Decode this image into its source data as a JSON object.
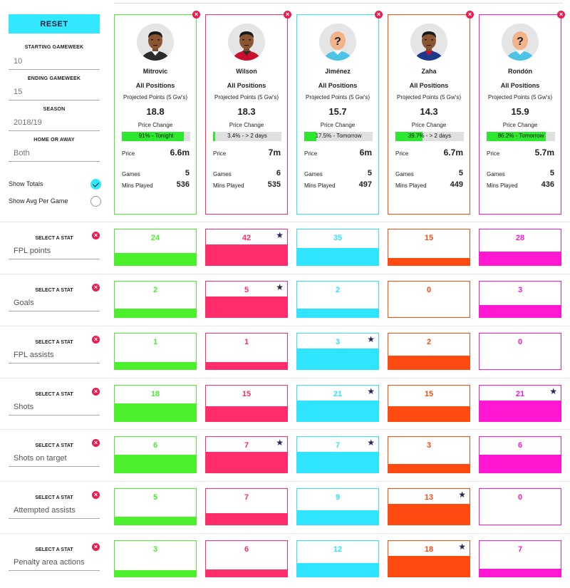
{
  "sidebar": {
    "reset_label": "RESET",
    "starting_gameweek": {
      "label": "STARTING GAMEWEEK",
      "value": "10"
    },
    "ending_gameweek": {
      "label": "ENDING GAMEWEEK",
      "value": "15"
    },
    "season": {
      "label": "SEASON",
      "value": "2018/19"
    },
    "home_away": {
      "label": "HOME OR AWAY",
      "value": "Both"
    },
    "show_totals": {
      "label": "Show Totals",
      "checked": true
    },
    "show_avg": {
      "label": "Show Avg Per Game",
      "checked": false
    }
  },
  "card_labels": {
    "position": "All Positions",
    "projected": "Projected Points (5 Gw's)",
    "price_change": "Price Change",
    "price": "Price",
    "games": "Games",
    "mins": "Mins Played"
  },
  "players": [
    {
      "name": "Mitrovic",
      "color": "#4cef2b",
      "points": "18.8",
      "change_text": "91% - Tonight",
      "change_pct": 0.91,
      "price": "6.6m",
      "games": "5",
      "mins": "536",
      "avatar": "photo-dark-kit"
    },
    {
      "name": "Wilson",
      "color": "#ff2d6b",
      "points": "18.3",
      "change_text": "3.4% - > 2 days",
      "change_pct": 0.034,
      "price": "7m",
      "games": "6",
      "mins": "535",
      "avatar": "photo-red-kit"
    },
    {
      "name": "Jiménez",
      "color": "#2fe4ff",
      "points": "15.7",
      "change_text": "17.5% - Tomorrow",
      "change_pct": 0.175,
      "price": "6m",
      "games": "5",
      "mins": "497",
      "avatar": "placeholder"
    },
    {
      "name": "Zaha",
      "color": "#ff4a12",
      "points": "14.3",
      "change_text": "39.7% - > 2 days",
      "change_pct": 0.397,
      "price": "6.7m",
      "games": "5",
      "mins": "449",
      "avatar": "photo-blue-kit"
    },
    {
      "name": "Rondón",
      "color": "#ff17d1",
      "points": "15.9",
      "change_text": "86.2% - Tomorrow",
      "change_pct": 0.862,
      "price": "5.7m",
      "games": "5",
      "mins": "436",
      "avatar": "placeholder"
    }
  ],
  "stat_select_label": "SELECT A STAT",
  "stats": [
    {
      "name": "FPL points",
      "values": [
        "24",
        "42",
        "35",
        "15",
        "28"
      ],
      "best": [
        1
      ]
    },
    {
      "name": "Goals",
      "values": [
        "2",
        "5",
        "2",
        "0",
        "3"
      ],
      "best": [
        1
      ]
    },
    {
      "name": "FPL assists",
      "values": [
        "1",
        "1",
        "3",
        "2",
        "0"
      ],
      "best": [
        2
      ]
    },
    {
      "name": "Shots",
      "values": [
        "18",
        "15",
        "21",
        "15",
        "21"
      ],
      "best": [
        2,
        4
      ]
    },
    {
      "name": "Shots on target",
      "values": [
        "6",
        "7",
        "7",
        "3",
        "6"
      ],
      "best": [
        1,
        2
      ]
    },
    {
      "name": "Attempted assists",
      "values": [
        "5",
        "7",
        "9",
        "13",
        "0"
      ],
      "best": [
        3
      ]
    },
    {
      "name": "Penalty area actions",
      "values": [
        "3",
        "6",
        "12",
        "18",
        "7"
      ],
      "best": [
        3
      ]
    }
  ],
  "icons": {
    "remove": "close-circle-icon",
    "best": "star-icon",
    "check": "check-icon"
  }
}
